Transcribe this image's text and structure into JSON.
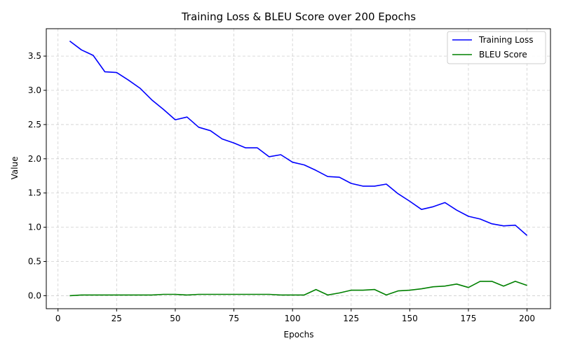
{
  "chart_data": {
    "type": "line",
    "title": "Training Loss & BLEU Score over 200 Epochs",
    "xlabel": "Epochs",
    "ylabel": "Value",
    "xlim": [
      -5,
      210
    ],
    "ylim": [
      -0.19,
      3.9
    ],
    "x_ticks": [
      0,
      25,
      50,
      75,
      100,
      125,
      150,
      175,
      200
    ],
    "y_ticks": [
      0.0,
      0.5,
      1.0,
      1.5,
      2.0,
      2.5,
      3.0,
      3.5
    ],
    "y_tick_labels": [
      "0.0",
      "0.5",
      "1.0",
      "1.5",
      "2.0",
      "2.5",
      "3.0",
      "3.5"
    ],
    "grid": true,
    "legend_position": "top-right",
    "x": [
      5,
      10,
      15,
      20,
      25,
      30,
      35,
      40,
      45,
      50,
      55,
      60,
      65,
      70,
      75,
      80,
      85,
      90,
      95,
      100,
      105,
      110,
      115,
      120,
      125,
      130,
      135,
      140,
      145,
      150,
      155,
      160,
      165,
      170,
      175,
      180,
      185,
      190,
      195,
      200
    ],
    "series": [
      {
        "name": "Training Loss",
        "color": "#0000ff",
        "values": [
          3.72,
          3.59,
          3.51,
          3.27,
          3.26,
          3.15,
          3.03,
          2.86,
          2.72,
          2.57,
          2.61,
          2.46,
          2.41,
          2.29,
          2.23,
          2.16,
          2.16,
          2.03,
          2.06,
          1.95,
          1.91,
          1.83,
          1.74,
          1.73,
          1.64,
          1.6,
          1.6,
          1.63,
          1.49,
          1.38,
          1.26,
          1.3,
          1.36,
          1.25,
          1.16,
          1.12,
          1.05,
          1.02,
          1.03,
          0.88
        ]
      },
      {
        "name": "BLEU Score",
        "color": "#008000",
        "values": [
          0.0,
          0.01,
          0.01,
          0.01,
          0.01,
          0.01,
          0.01,
          0.01,
          0.02,
          0.02,
          0.01,
          0.02,
          0.02,
          0.02,
          0.02,
          0.02,
          0.02,
          0.02,
          0.01,
          0.01,
          0.01,
          0.09,
          0.01,
          0.04,
          0.08,
          0.08,
          0.09,
          0.01,
          0.07,
          0.08,
          0.1,
          0.13,
          0.14,
          0.17,
          0.12,
          0.21,
          0.21,
          0.14,
          0.21,
          0.15
        ]
      }
    ]
  }
}
